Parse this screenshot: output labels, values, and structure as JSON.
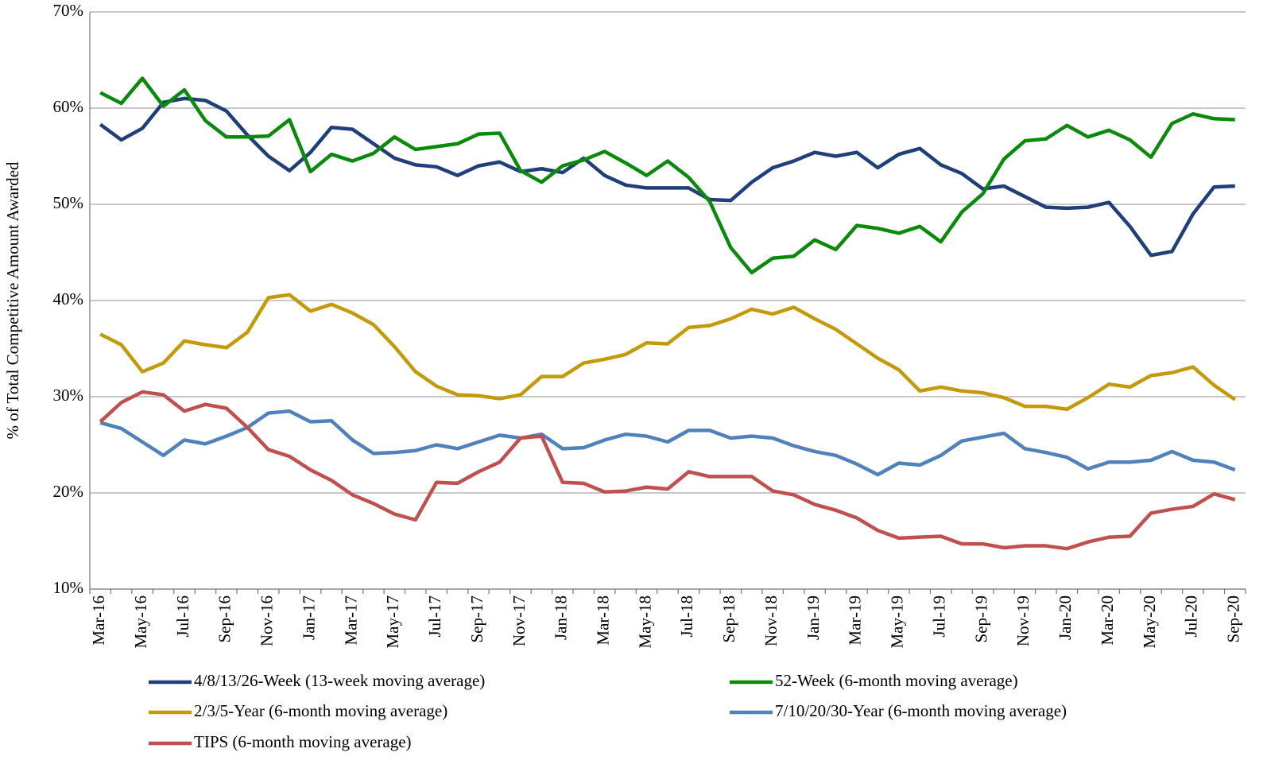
{
  "chart_data": {
    "type": "line",
    "y_label": "% of Total Competitive Amount Awarded",
    "categories": [
      "Mar-16",
      null,
      "May-16",
      null,
      "Jul-16",
      null,
      "Sep-16",
      null,
      "Nov-16",
      null,
      "Jan-17",
      null,
      "Mar-17",
      null,
      "May-17",
      null,
      "Jul-17",
      null,
      "Sep-17",
      null,
      "Nov-17",
      null,
      "Jan-18",
      null,
      "Mar-18",
      null,
      "May-18",
      null,
      "Jul-18",
      null,
      "Sep-18",
      null,
      "Nov-18",
      null,
      "Jan-19",
      null,
      "Mar-19",
      null,
      "May-19",
      null,
      "Jul-19",
      null,
      "Sep-19",
      null,
      "Nov-19",
      null,
      "Jan-20",
      null,
      "Mar-20",
      null,
      "May-20",
      null,
      "Jul-20",
      null,
      "Sep-20"
    ],
    "series": [
      {
        "name": "4/8/13/26-Week (13-week moving average)",
        "color": "#1f3f7a",
        "values": [
          58.3,
          56.7,
          57.9,
          60.6,
          61.0,
          60.8,
          59.7,
          57.2,
          55.0,
          53.5,
          55.4,
          58.0,
          57.8,
          56.3,
          54.8,
          54.1,
          53.9,
          53.0,
          54.0,
          54.4,
          53.4,
          53.7,
          53.3,
          54.8,
          53.0,
          52.0,
          51.7,
          51.7,
          51.7,
          50.5,
          50.4,
          52.3,
          53.8,
          54.5,
          55.4,
          55.0,
          55.4,
          53.8,
          55.2,
          55.8,
          54.1,
          53.2,
          51.6,
          51.9,
          50.8,
          49.7,
          49.6,
          49.7,
          50.2,
          47.7,
          44.7,
          45.1,
          49.0,
          51.8,
          51.9
        ]
      },
      {
        "name": "52-Week (6-month moving average)",
        "color": "#0a8a0a",
        "values": [
          61.6,
          60.5,
          63.1,
          60.2,
          61.9,
          58.7,
          57.0,
          57.0,
          57.1,
          58.8,
          53.4,
          55.2,
          54.5,
          55.3,
          57.0,
          55.7,
          56.0,
          56.3,
          57.3,
          57.4,
          53.5,
          52.3,
          54.0,
          54.6,
          55.5,
          54.3,
          53.0,
          54.5,
          52.8,
          50.3,
          45.5,
          42.9,
          44.4,
          44.6,
          46.3,
          45.3,
          47.8,
          47.5,
          47.0,
          47.7,
          46.1,
          49.2,
          51.1,
          54.7,
          56.6,
          56.8,
          58.2,
          57.0,
          57.7,
          56.7,
          54.9,
          58.4,
          59.4,
          58.9,
          58.8
        ]
      },
      {
        "name": "2/3/5-Year (6-month moving average)",
        "color": "#c49a0a",
        "values": [
          36.5,
          35.4,
          32.6,
          33.5,
          35.8,
          35.4,
          35.1,
          36.7,
          40.3,
          40.6,
          38.9,
          39.6,
          38.7,
          37.5,
          35.2,
          32.6,
          31.1,
          30.2,
          30.1,
          29.8,
          30.2,
          32.1,
          32.1,
          33.5,
          33.9,
          34.4,
          35.6,
          35.5,
          37.2,
          37.4,
          38.1,
          39.1,
          38.6,
          39.3,
          38.1,
          37.0,
          35.5,
          34.0,
          32.8,
          30.6,
          31.0,
          30.6,
          30.4,
          29.9,
          29.0,
          29.0,
          28.7,
          29.9,
          31.3,
          31.0,
          32.2,
          32.5,
          33.1,
          31.2,
          29.7
        ]
      },
      {
        "name": "7/10/20/30-Year (6-month moving average)",
        "color": "#4f81bd",
        "values": [
          27.3,
          26.7,
          25.3,
          23.9,
          25.5,
          25.1,
          25.9,
          26.8,
          28.3,
          28.5,
          27.4,
          27.5,
          25.5,
          24.1,
          24.2,
          24.4,
          25.0,
          24.6,
          25.3,
          26.0,
          25.7,
          26.1,
          24.6,
          24.7,
          25.5,
          26.1,
          25.9,
          25.3,
          26.5,
          26.5,
          25.7,
          25.9,
          25.7,
          24.9,
          24.3,
          23.9,
          23.0,
          21.9,
          23.1,
          22.9,
          23.9,
          25.4,
          25.8,
          26.2,
          24.6,
          24.2,
          23.7,
          22.5,
          23.2,
          23.2,
          23.4,
          24.3,
          23.4,
          23.2,
          22.4
        ]
      },
      {
        "name": "TIPS (6-month moving average)",
        "color": "#c0504d",
        "values": [
          27.4,
          29.4,
          30.5,
          30.2,
          28.5,
          29.2,
          28.8,
          26.8,
          24.5,
          23.8,
          22.4,
          21.3,
          19.8,
          18.9,
          17.8,
          17.2,
          21.1,
          21.0,
          22.2,
          23.2,
          25.7,
          25.9,
          21.1,
          21.0,
          20.1,
          20.2,
          20.6,
          20.4,
          22.2,
          21.7,
          21.7,
          21.7,
          20.2,
          19.8,
          18.8,
          18.2,
          17.4,
          16.1,
          15.3,
          15.4,
          15.5,
          14.7,
          14.7,
          14.3,
          14.5,
          14.5,
          14.2,
          14.9,
          15.4,
          15.5,
          17.9,
          18.3,
          18.6,
          19.9,
          19.3
        ]
      }
    ],
    "ylim": [
      10,
      70
    ],
    "yticks": [
      {
        "value": 10,
        "label": "10%"
      },
      {
        "value": 20,
        "label": "20%"
      },
      {
        "value": 30,
        "label": "30%"
      },
      {
        "value": 40,
        "label": "40%"
      },
      {
        "value": 50,
        "label": "50%"
      },
      {
        "value": 60,
        "label": "60%"
      },
      {
        "value": 70,
        "label": "70%"
      }
    ],
    "grid": true,
    "legend": "bottom"
  }
}
